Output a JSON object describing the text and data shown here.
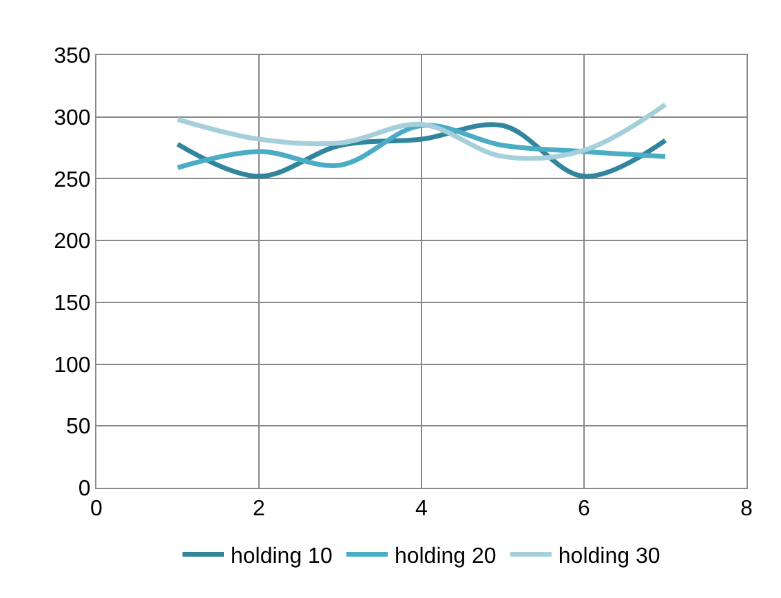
{
  "chart_data": {
    "type": "line",
    "x": [
      1,
      2,
      3,
      4,
      5,
      6,
      7
    ],
    "series": [
      {
        "name": "holding 10",
        "color": "#31859c",
        "values": [
          278,
          252,
          277,
          282,
          293,
          252,
          281
        ]
      },
      {
        "name": "holding 20",
        "color": "#4bacc6",
        "values": [
          259,
          272,
          261,
          293,
          277,
          272,
          268
        ]
      },
      {
        "name": "holding 30",
        "color": "#a5cfdb",
        "values": [
          298,
          282,
          279,
          294,
          268,
          273,
          310
        ]
      }
    ],
    "xlim": [
      0,
      8
    ],
    "xticks": [
      0,
      2,
      4,
      6,
      8
    ],
    "ylim": [
      0,
      350
    ],
    "yticks": [
      0,
      50,
      100,
      150,
      200,
      250,
      300,
      350
    ],
    "grid": true,
    "legend": "bottom",
    "marker": "none",
    "line_style": "solid"
  }
}
